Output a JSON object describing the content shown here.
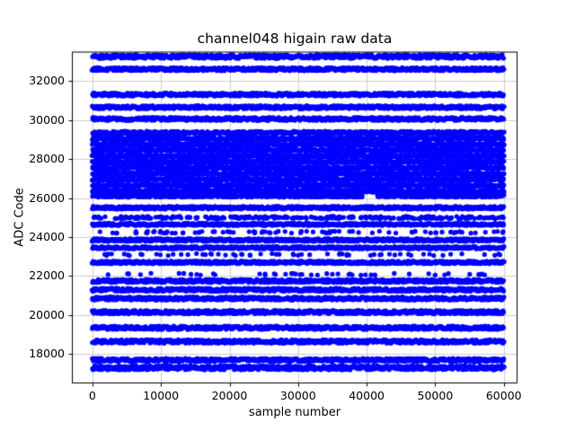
{
  "chart_data": {
    "type": "scatter",
    "title": "channel048 higain raw data",
    "xlabel": "sample number",
    "ylabel": "ADC Code",
    "xlim": [
      -3000,
      62000
    ],
    "ylim": [
      16500,
      33500
    ],
    "x_ticks": [
      0,
      10000,
      20000,
      30000,
      40000,
      50000,
      60000
    ],
    "y_ticks": [
      18000,
      20000,
      22000,
      24000,
      26000,
      28000,
      30000,
      32000
    ],
    "x_data_range": [
      0,
      60000
    ],
    "grid": true,
    "legend": "none",
    "marker_color": "#0000ff",
    "marker_radius": 2.6,
    "bands": [
      {
        "adc": 33250,
        "density": 1.0,
        "jitter": 100
      },
      {
        "adc": 32600,
        "density": 1.0,
        "jitter": 80
      },
      {
        "adc": 31300,
        "density": 1.0,
        "jitter": 80
      },
      {
        "adc": 30650,
        "density": 1.0,
        "jitter": 80
      },
      {
        "adc": 30050,
        "density": 1.0,
        "jitter": 80
      },
      {
        "adc": 29350,
        "density": 1.0,
        "jitter": 70
      },
      {
        "adc": 29050,
        "density": 1.0,
        "jitter": 70
      },
      {
        "adc": 28750,
        "density": 1.0,
        "jitter": 70
      },
      {
        "adc": 28450,
        "density": 1.0,
        "jitter": 70
      },
      {
        "adc": 28150,
        "density": 1.0,
        "jitter": 70
      },
      {
        "adc": 27850,
        "density": 1.0,
        "jitter": 70
      },
      {
        "adc": 27550,
        "density": 1.0,
        "jitter": 70
      },
      {
        "adc": 27250,
        "density": 1.0,
        "jitter": 70
      },
      {
        "adc": 26950,
        "density": 1.0,
        "jitter": 70
      },
      {
        "adc": 26650,
        "density": 1.0,
        "jitter": 70
      },
      {
        "adc": 26350,
        "density": 1.0,
        "jitter": 70
      },
      {
        "adc": 26100,
        "density": 0.95,
        "jitter": 60
      },
      {
        "adc": 25500,
        "density": 1.0,
        "jitter": 70
      },
      {
        "adc": 25000,
        "density": 0.68,
        "jitter": 60
      },
      {
        "adc": 24650,
        "density": 0.92,
        "jitter": 60
      },
      {
        "adc": 24250,
        "density": 0.2,
        "jitter": 50
      },
      {
        "adc": 23850,
        "density": 1.0,
        "jitter": 70
      },
      {
        "adc": 23450,
        "density": 0.8,
        "jitter": 60
      },
      {
        "adc": 23100,
        "density": 0.15,
        "jitter": 50
      },
      {
        "adc": 22700,
        "density": 1.0,
        "jitter": 70
      },
      {
        "adc": 22100,
        "density": 0.12,
        "jitter": 50
      },
      {
        "adc": 21750,
        "density": 1.0,
        "jitter": 80
      },
      {
        "adc": 21300,
        "density": 1.0,
        "jitter": 80
      },
      {
        "adc": 20850,
        "density": 1.0,
        "jitter": 80
      },
      {
        "adc": 20150,
        "density": 1.0,
        "jitter": 90
      },
      {
        "adc": 19350,
        "density": 1.0,
        "jitter": 90
      },
      {
        "adc": 18650,
        "density": 1.0,
        "jitter": 90
      },
      {
        "adc": 17700,
        "density": 1.0,
        "jitter": 80
      },
      {
        "adc": 17300,
        "density": 1.0,
        "jitter": 110
      }
    ],
    "holes": [
      {
        "x": 40500,
        "y": 26100,
        "rx": 1000,
        "ry": 150
      }
    ]
  },
  "colors": {
    "background": "#ffffff",
    "axes_edge": "#000000",
    "grid": "#c0c0c0",
    "marker": "#0000ff",
    "text": "#000000"
  }
}
